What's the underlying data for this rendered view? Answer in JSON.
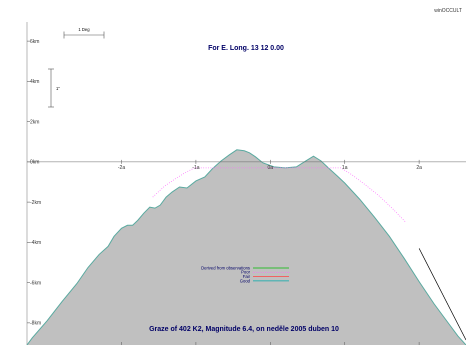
{
  "watermark": "winOCCULT",
  "chart_data": {
    "type": "area",
    "title": "For E. Long.   13 12  0.00",
    "footer": "Graze of     402   K2,  Magnitude   6.4,   on neděle  2005  duben  10",
    "scale_bars": {
      "horizontal_label": "1 Deg",
      "vertical_label": "1\""
    },
    "x_ticks": [
      {
        "value": -2,
        "label": "-2a"
      },
      {
        "value": -1,
        "label": "-1a"
      },
      {
        "value": 0,
        "label": "0a"
      },
      {
        "value": 1,
        "label": "1a"
      },
      {
        "value": 2,
        "label": "2a"
      }
    ],
    "y_ticks": [
      {
        "value": 6,
        "label": "6km"
      },
      {
        "value": 4,
        "label": "4km"
      },
      {
        "value": 2,
        "label": "2km"
      },
      {
        "value": 0,
        "label": "0km"
      },
      {
        "value": -2,
        "label": "-2km"
      },
      {
        "value": -4,
        "label": "-4km"
      },
      {
        "value": -6,
        "label": "-6km"
      },
      {
        "value": -8,
        "label": "-8km"
      }
    ],
    "xlim": [
      -3.27,
      2.63
    ],
    "ylim": [
      -9.1,
      6.95
    ],
    "series": [
      {
        "name": "Limb profile",
        "color": "#5aaaa0",
        "fill": "#c0c0c0",
        "points": [
          [
            -3.27,
            -9.1
          ],
          [
            -3.2,
            -8.75
          ],
          [
            -3.0,
            -7.9
          ],
          [
            -2.8,
            -6.95
          ],
          [
            -2.6,
            -6.05
          ],
          [
            -2.45,
            -5.25
          ],
          [
            -2.3,
            -4.6
          ],
          [
            -2.18,
            -4.2
          ],
          [
            -2.1,
            -3.7
          ],
          [
            -2.0,
            -3.3
          ],
          [
            -1.92,
            -3.15
          ],
          [
            -1.85,
            -3.15
          ],
          [
            -1.78,
            -2.9
          ],
          [
            -1.7,
            -2.55
          ],
          [
            -1.62,
            -2.25
          ],
          [
            -1.55,
            -2.3
          ],
          [
            -1.48,
            -2.15
          ],
          [
            -1.4,
            -1.75
          ],
          [
            -1.32,
            -1.5
          ],
          [
            -1.22,
            -1.25
          ],
          [
            -1.12,
            -1.3
          ],
          [
            -1.0,
            -0.95
          ],
          [
            -0.88,
            -0.75
          ],
          [
            -0.78,
            -0.35
          ],
          [
            -0.66,
            0.05
          ],
          [
            -0.55,
            0.35
          ],
          [
            -0.45,
            0.6
          ],
          [
            -0.35,
            0.55
          ],
          [
            -0.28,
            0.45
          ],
          [
            -0.2,
            0.25
          ],
          [
            -0.1,
            -0.05
          ],
          [
            0.05,
            -0.25
          ],
          [
            0.2,
            -0.3
          ],
          [
            0.35,
            -0.25
          ],
          [
            0.48,
            0.05
          ],
          [
            0.58,
            0.28
          ],
          [
            0.68,
            0.05
          ],
          [
            0.78,
            -0.3
          ],
          [
            0.9,
            -0.7
          ],
          [
            1.0,
            -1.05
          ],
          [
            1.2,
            -1.85
          ],
          [
            1.4,
            -2.75
          ],
          [
            1.6,
            -3.7
          ],
          [
            1.8,
            -4.8
          ],
          [
            2.0,
            -5.95
          ],
          [
            2.2,
            -7.05
          ],
          [
            2.4,
            -8.05
          ],
          [
            2.52,
            -8.65
          ],
          [
            2.63,
            -9.1
          ]
        ]
      },
      {
        "name": "Derived from observations",
        "color": "#00bb00",
        "points": []
      },
      {
        "name": "Poor",
        "color": "#ff66ff",
        "dash": "dotted",
        "points": [
          [
            -1.58,
            -1.75
          ],
          [
            -1.42,
            -1.2
          ],
          [
            -1.28,
            -0.85
          ],
          [
            -1.15,
            -0.55
          ],
          [
            -1.02,
            -0.3
          ],
          [
            0.95,
            -0.3
          ],
          [
            1.1,
            -0.65
          ],
          [
            1.28,
            -1.15
          ],
          [
            1.45,
            -1.65
          ],
          [
            1.65,
            -2.35
          ],
          [
            1.82,
            -3.0
          ]
        ]
      },
      {
        "name": "Fair",
        "color": "#ff4444",
        "points": []
      },
      {
        "name": "Good",
        "color": "#00aaaa",
        "points": []
      },
      {
        "name": "Graze track",
        "color": "#000000",
        "points": [
          [
            2.0,
            -4.3
          ],
          [
            2.63,
            -8.85
          ]
        ]
      }
    ],
    "legend": {
      "position": "bottom-center",
      "entries": [
        {
          "label": "Derived from observations",
          "color": "#00bb00",
          "style": "solid"
        },
        {
          "label": "Poor",
          "color": "#ff66ff",
          "style": "dotted"
        },
        {
          "label": "Fair",
          "color": "#ff4444",
          "style": "solid"
        },
        {
          "label": "Good",
          "color": "#00aaaa",
          "style": "solid"
        }
      ]
    }
  }
}
